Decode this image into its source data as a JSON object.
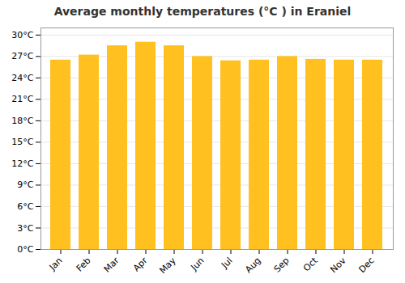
{
  "chart_data": {
    "type": "bar",
    "title": "Average monthly temperatures (°C ) in Eraniel",
    "categories": [
      "Jan",
      "Feb",
      "Mar",
      "Apr",
      "May",
      "Jun",
      "Jul",
      "Aug",
      "Sep",
      "Oct",
      "Nov",
      "Dec"
    ],
    "values": [
      26.5,
      27.2,
      28.5,
      29.0,
      28.5,
      27.0,
      26.4,
      26.5,
      27.0,
      26.6,
      26.5,
      26.5
    ],
    "color": "#FFC020",
    "ylim": [
      0,
      31
    ],
    "yticks": [
      {
        "value": 0,
        "label": "0°C"
      },
      {
        "value": 3,
        "label": "3°C"
      },
      {
        "value": 6,
        "label": "6°C"
      },
      {
        "value": 9,
        "label": "9°C"
      },
      {
        "value": 12,
        "label": "12°C"
      },
      {
        "value": 15,
        "label": "15°C"
      },
      {
        "value": 18,
        "label": "18°C"
      },
      {
        "value": 21,
        "label": "21°C"
      },
      {
        "value": 24,
        "label": "24°C"
      },
      {
        "value": 27,
        "label": "27°C"
      },
      {
        "value": 30,
        "label": "30°C"
      }
    ],
    "grid": true
  }
}
